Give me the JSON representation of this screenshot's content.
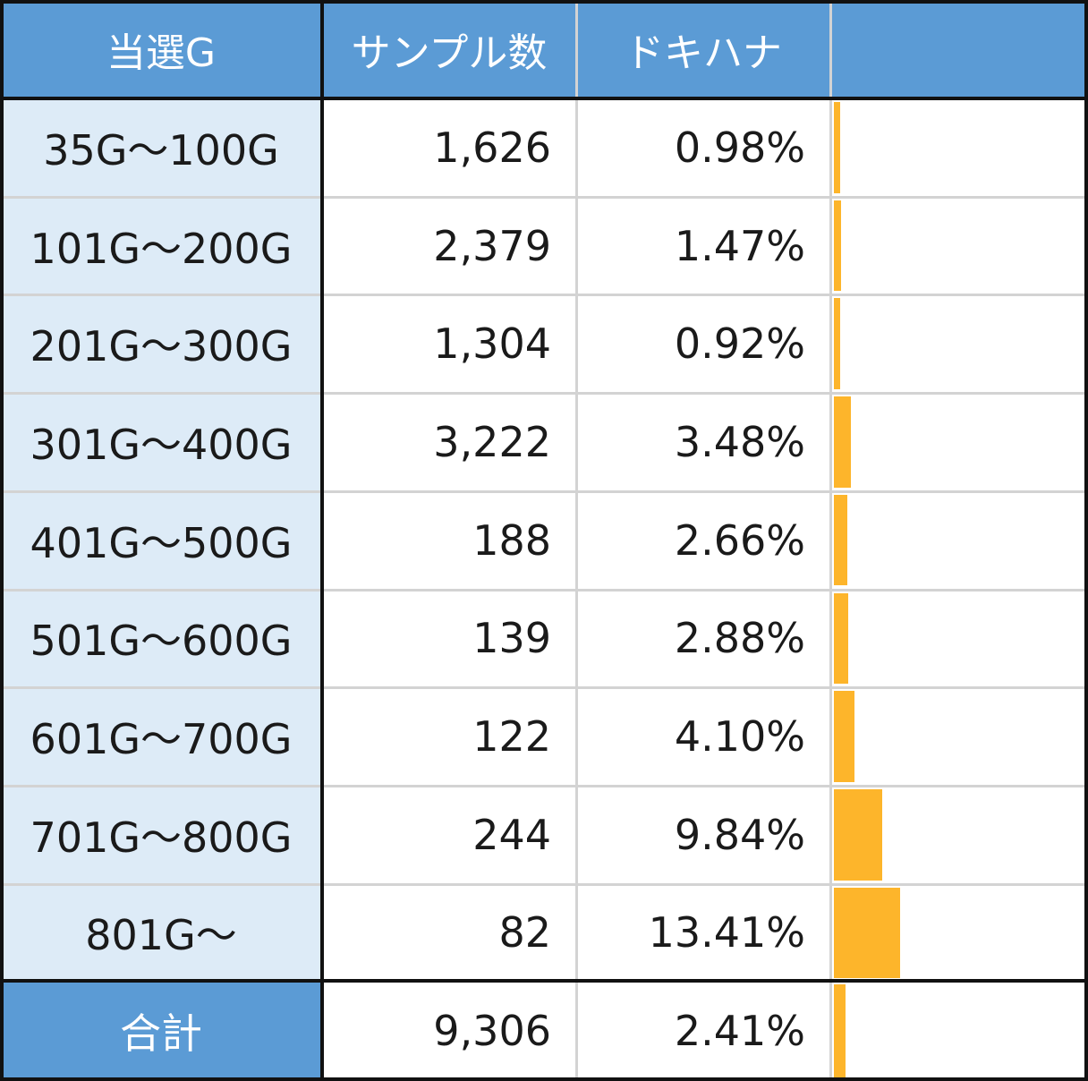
{
  "headers": {
    "col1": "当選G",
    "col2": "サンプル数",
    "col3": "ドキハナ",
    "col4": ""
  },
  "chart_data": {
    "type": "table",
    "columns": [
      "当選G",
      "サンプル数",
      "ドキハナ"
    ],
    "rows": [
      {
        "label": "35G〜100G",
        "samples": "1,626",
        "rate_text": "0.98%",
        "rate": 0.98
      },
      {
        "label": "101G〜200G",
        "samples": "2,379",
        "rate_text": "1.47%",
        "rate": 1.47
      },
      {
        "label": "201G〜300G",
        "samples": "1,304",
        "rate_text": "0.92%",
        "rate": 0.92
      },
      {
        "label": "301G〜400G",
        "samples": "3,222",
        "rate_text": "3.48%",
        "rate": 3.48
      },
      {
        "label": "401G〜500G",
        "samples": "188",
        "rate_text": "2.66%",
        "rate": 2.66
      },
      {
        "label": "501G〜600G",
        "samples": "139",
        "rate_text": "2.88%",
        "rate": 2.88
      },
      {
        "label": "601G〜700G",
        "samples": "122",
        "rate_text": "4.10%",
        "rate": 4.1
      },
      {
        "label": "701G〜800G",
        "samples": "244",
        "rate_text": "9.84%",
        "rate": 9.84
      },
      {
        "label": "801G〜",
        "samples": "82",
        "rate_text": "13.41%",
        "rate": 13.41
      }
    ],
    "total": {
      "label": "合計",
      "samples": "9,306",
      "rate_text": "2.41%",
      "rate": 2.41
    },
    "bar_max_rate": 13.41,
    "colors": {
      "header_bg": "#5b9bd5",
      "label_bg": "#ddebf7",
      "bar": "#fdb52b"
    }
  }
}
